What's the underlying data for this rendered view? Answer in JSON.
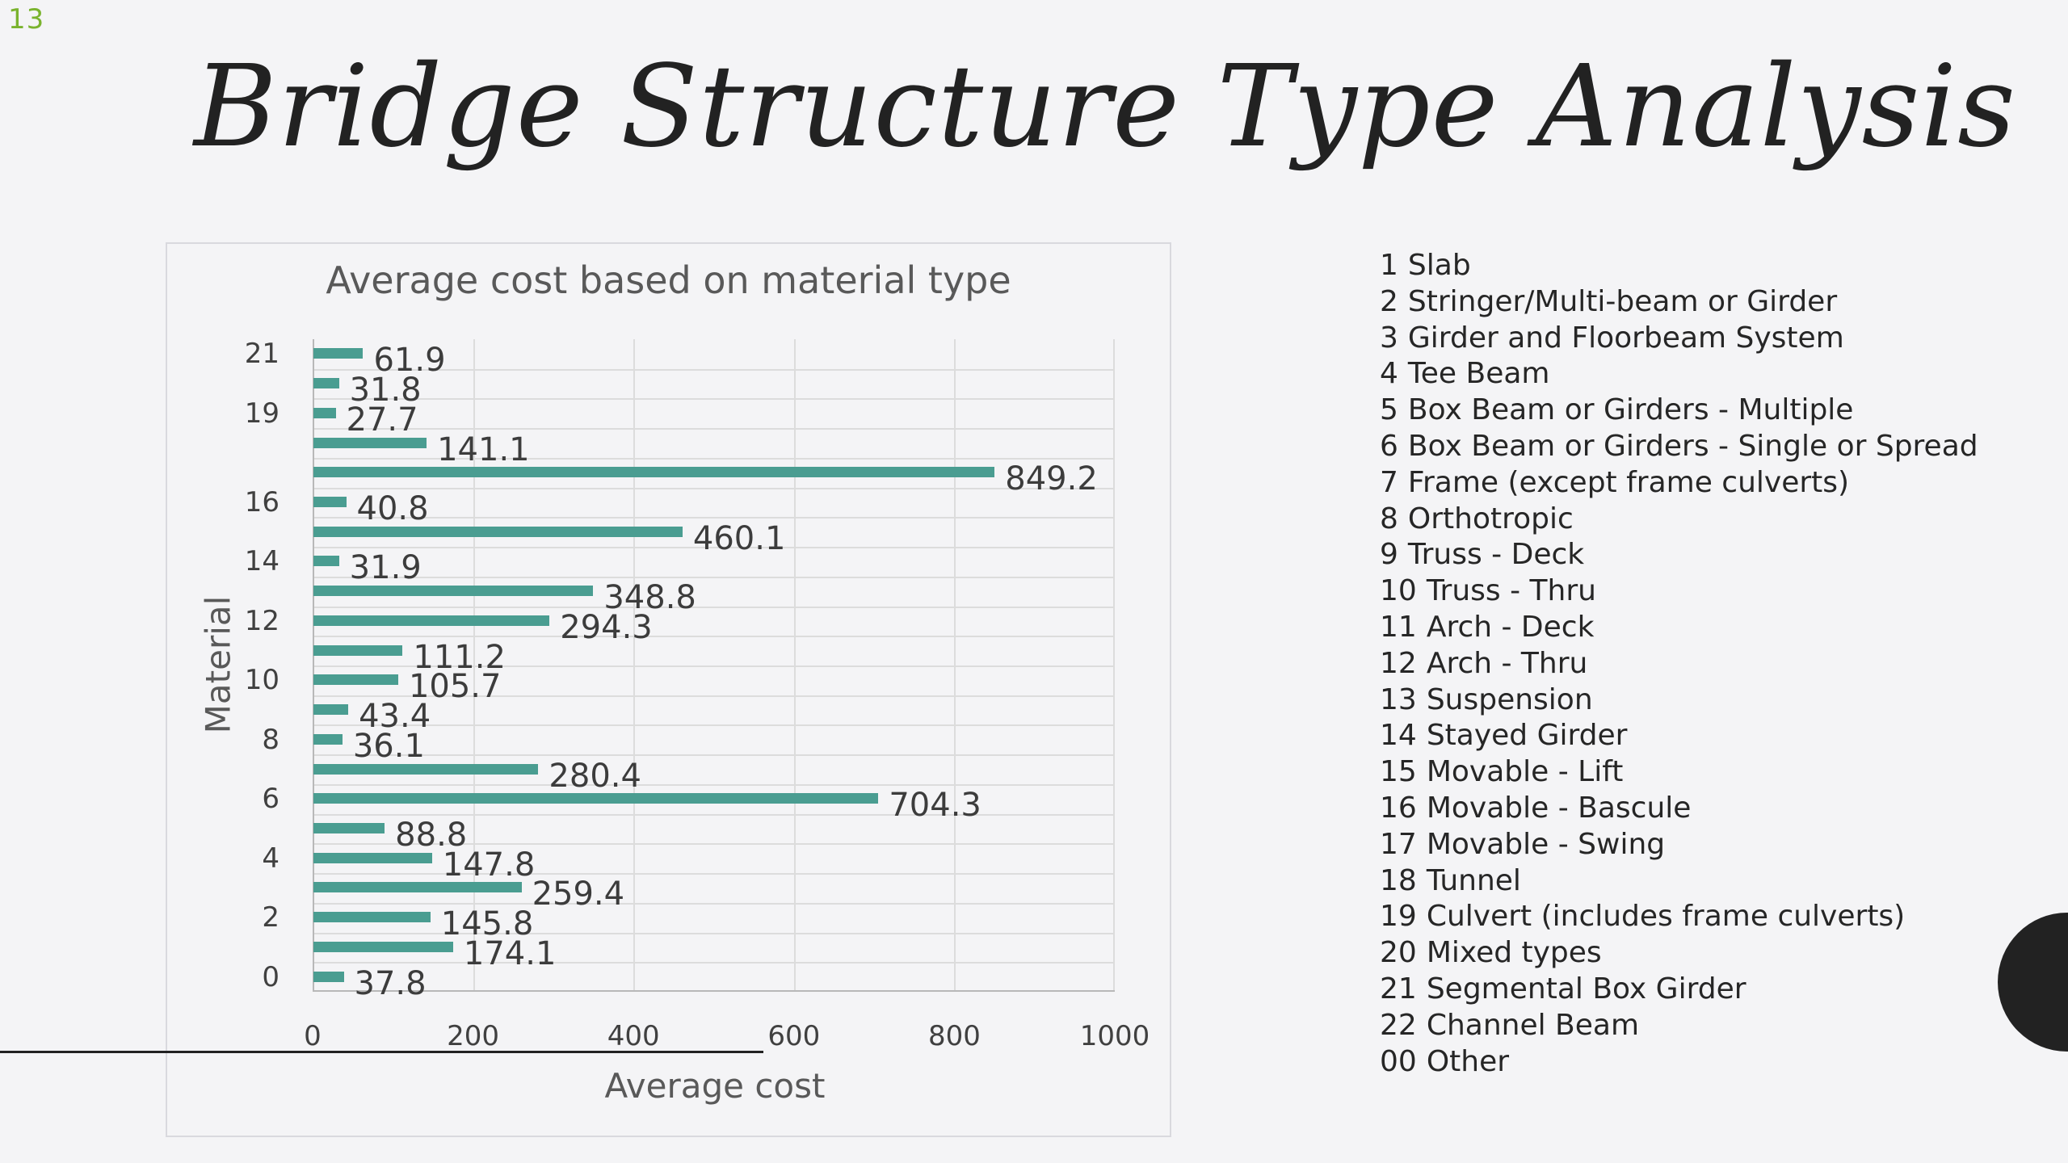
{
  "slide": {
    "number": "13",
    "title": "Bridge Structure Type Analysis"
  },
  "colors": {
    "bar": "#4a9d91",
    "accent": "#7ab32e",
    "title": "#222222"
  },
  "chart_data": {
    "type": "bar",
    "orientation": "horizontal",
    "title": "Average cost based on material type",
    "xlabel": "Average cost",
    "ylabel": "Material",
    "xlim": [
      0,
      1000
    ],
    "x_ticks": [
      "0",
      "200",
      "400",
      "600",
      "800",
      "1000"
    ],
    "y_ticks": [
      "0",
      "2",
      "4",
      "6",
      "8",
      "10",
      "12",
      "14",
      "16",
      "19",
      "21"
    ],
    "grid": true,
    "bars": [
      {
        "label": "61.9",
        "value": 61.9
      },
      {
        "label": "31.8",
        "value": 31.8
      },
      {
        "label": "27.7",
        "value": 27.7
      },
      {
        "label": "141.1",
        "value": 141.1
      },
      {
        "label": "849.2",
        "value": 849.2
      },
      {
        "label": "40.8",
        "value": 40.8
      },
      {
        "label": "460.1",
        "value": 460.1
      },
      {
        "label": "31.9",
        "value": 31.9
      },
      {
        "label": "348.8",
        "value": 348.8
      },
      {
        "label": "294.3",
        "value": 294.3
      },
      {
        "label": "111.2",
        "value": 111.2
      },
      {
        "label": "105.7",
        "value": 105.7
      },
      {
        "label": "43.4",
        "value": 43.4
      },
      {
        "label": "36.1",
        "value": 36.1
      },
      {
        "label": "280.4",
        "value": 280.4
      },
      {
        "label": "704.3",
        "value": 704.3
      },
      {
        "label": "88.8",
        "value": 88.8
      },
      {
        "label": "147.8",
        "value": 147.8
      },
      {
        "label": "259.4",
        "value": 259.4
      },
      {
        "label": "145.8",
        "value": 145.8
      },
      {
        "label": "174.1",
        "value": 174.1
      },
      {
        "label": "37.8",
        "value": 37.8
      }
    ]
  },
  "legend": [
    {
      "code": "1",
      "name": "Slab"
    },
    {
      "code": "2",
      "name": "Stringer/Multi-beam or Girder"
    },
    {
      "code": "3",
      "name": "Girder and Floorbeam System"
    },
    {
      "code": "4",
      "name": "Tee Beam"
    },
    {
      "code": "5",
      "name": "Box Beam or Girders - Multiple"
    },
    {
      "code": "6",
      "name": "Box Beam or Girders - Single or Spread"
    },
    {
      "code": "7",
      "name": "Frame (except frame culverts)"
    },
    {
      "code": "8",
      "name": "Orthotropic"
    },
    {
      "code": "9",
      "name": "Truss - Deck"
    },
    {
      "code": "10",
      "name": "Truss - Thru"
    },
    {
      "code": "11",
      "name": "Arch - Deck"
    },
    {
      "code": "12",
      "name": "Arch - Thru"
    },
    {
      "code": "13",
      "name": "Suspension"
    },
    {
      "code": "14",
      "name": "Stayed Girder"
    },
    {
      "code": "15",
      "name": "Movable - Lift"
    },
    {
      "code": "16",
      "name": "Movable - Bascule"
    },
    {
      "code": "17",
      "name": "Movable - Swing"
    },
    {
      "code": "18",
      "name": "Tunnel"
    },
    {
      "code": "19",
      "name": "Culvert (includes frame culverts)"
    },
    {
      "code": "20",
      "name": "Mixed types"
    },
    {
      "code": "21",
      "name": "Segmental Box Girder"
    },
    {
      "code": "22",
      "name": "Channel Beam"
    },
    {
      "code": "00",
      "name": "Other"
    }
  ]
}
